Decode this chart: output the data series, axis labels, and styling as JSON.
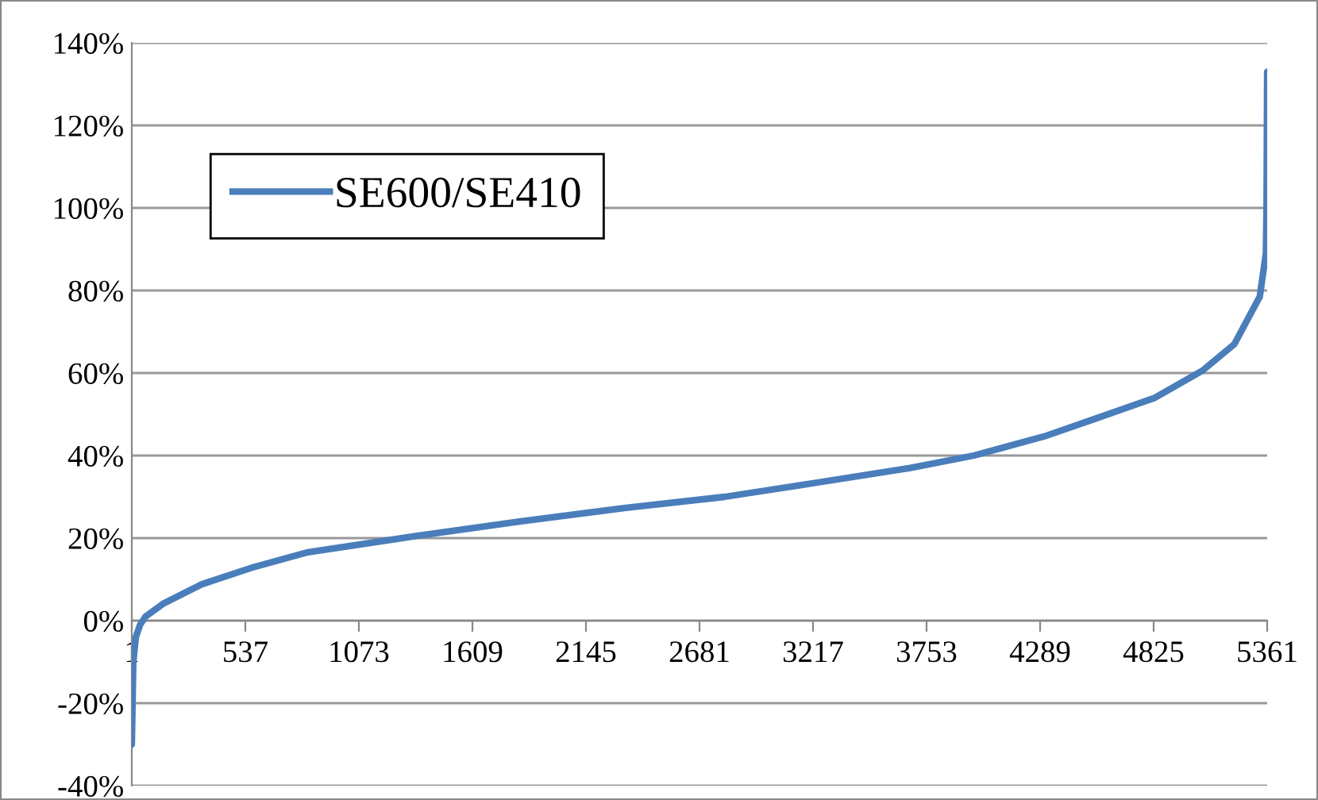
{
  "chart_data": {
    "type": "line",
    "x": [
      1,
      8,
      20,
      40,
      66,
      152,
      331,
      578,
      826,
      1329,
      1831,
      2326,
      2800,
      3181,
      3676,
      3976,
      4306,
      4553,
      4831,
      5056,
      5206,
      5326,
      5355,
      5358,
      5359,
      5361
    ],
    "series": [
      {
        "name": "SE600/SE410",
        "color": "#4a7ebb",
        "values": [
          -30,
          -10,
          -4,
          -1,
          1,
          4.2,
          8.8,
          13,
          16.5,
          20.4,
          24,
          27.3,
          30,
          33,
          37,
          40,
          44.6,
          49,
          54,
          60.6,
          67,
          78.5,
          89,
          100,
          110,
          133
        ]
      }
    ],
    "xlim": [
      1,
      5361
    ],
    "xticks": [
      1,
      537,
      1073,
      1609,
      2145,
      2681,
      3217,
      3753,
      4289,
      4825,
      5361
    ],
    "ylim": [
      -40,
      140
    ],
    "yticks": [
      {
        "value": -40,
        "label": "-40%"
      },
      {
        "value": -20,
        "label": "-20%"
      },
      {
        "value": 0,
        "label": "0%"
      },
      {
        "value": 20,
        "label": "20%"
      },
      {
        "value": 40,
        "label": "40%"
      },
      {
        "value": 60,
        "label": "60%"
      },
      {
        "value": 80,
        "label": "80%"
      },
      {
        "value": 100,
        "label": "100%"
      },
      {
        "value": 120,
        "label": "120%"
      },
      {
        "value": 140,
        "label": "140%"
      }
    ],
    "grid": "y",
    "legend": "top left",
    "marker": "none",
    "line_style": "solid"
  }
}
